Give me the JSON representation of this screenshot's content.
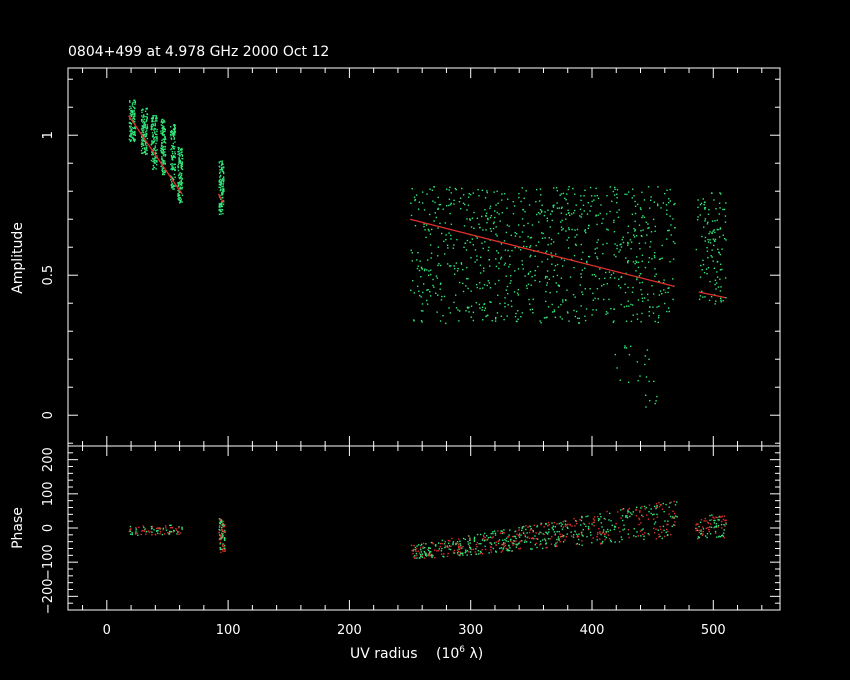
{
  "chart_data": [
    {
      "type": "scatter",
      "title": "0804+499 at 4.978 GHz 2000 Oct 12",
      "xlabel": "UV radius",
      "xlabel_unit": "(10^6 λ)",
      "ylabel": "Amplitude",
      "xlim": [
        -32,
        555
      ],
      "ylim": [
        -0.11,
        1.24
      ],
      "xticks": [
        0,
        100,
        200,
        300,
        400,
        500
      ],
      "yticks": [
        0,
        0.5,
        1
      ],
      "ytick_labels": [
        "0",
        "0.5",
        "1"
      ],
      "colors": {
        "data": "#33e87a",
        "model": "#e0302a",
        "axes": "#ffffff"
      },
      "series": [
        {
          "name": "data",
          "clusters": [
            {
              "x": [
                18,
                23
              ],
              "y": [
                0.98,
                1.13
              ]
            },
            {
              "x": [
                28,
                33
              ],
              "y": [
                0.93,
                1.1
              ]
            },
            {
              "x": [
                36,
                41
              ],
              "y": [
                0.88,
                1.08
              ]
            },
            {
              "x": [
                44,
                48
              ],
              "y": [
                0.86,
                1.06
              ]
            },
            {
              "x": [
                52,
                56
              ],
              "y": [
                0.81,
                1.04
              ]
            },
            {
              "x": [
                58,
                62
              ],
              "y": [
                0.76,
                0.96
              ]
            },
            {
              "x": [
                92,
                96
              ],
              "y": [
                0.72,
                0.91
              ]
            },
            {
              "x": [
                250,
                468
              ],
              "y": [
                0.33,
                0.82
              ]
            },
            {
              "x": [
                485,
                510
              ],
              "y": [
                0.4,
                0.8
              ]
            },
            {
              "x": [
                418,
                455
              ],
              "y": [
                0.03,
                0.25
              ]
            }
          ]
        },
        {
          "name": "model",
          "segments": [
            {
              "x": [
                18,
                62
              ],
              "y": [
                1.07,
                0.79
              ]
            },
            {
              "x": [
                92,
                96
              ],
              "y": [
                0.79,
                0.76
              ]
            },
            {
              "x": [
                250,
                468
              ],
              "y": [
                0.7,
                0.46
              ]
            },
            {
              "x": [
                488,
                510
              ],
              "y": [
                0.44,
                0.42
              ]
            }
          ]
        }
      ]
    },
    {
      "type": "scatter",
      "xlabel": "UV radius",
      "ylabel": "Phase",
      "xlim": [
        -32,
        555
      ],
      "ylim": [
        -240,
        240
      ],
      "xticks": [
        0,
        100,
        200,
        300,
        400,
        500
      ],
      "yticks": [
        -200,
        -100,
        0,
        100,
        200
      ],
      "ytick_labels": [
        "−200",
        "−100",
        "0",
        "100",
        "200"
      ],
      "series": [
        {
          "name": "data",
          "clusters": [
            {
              "x": [
                18,
                62
              ],
              "y": [
                -20,
                10
              ]
            },
            {
              "x": [
                92,
                97
              ],
              "y": [
                -70,
                30
              ]
            },
            {
              "x": [
                250,
                470
              ],
              "y": [
                -120,
                70
              ]
            },
            {
              "x": [
                485,
                510
              ],
              "y": [
                -30,
                40
              ]
            }
          ]
        }
      ]
    }
  ]
}
